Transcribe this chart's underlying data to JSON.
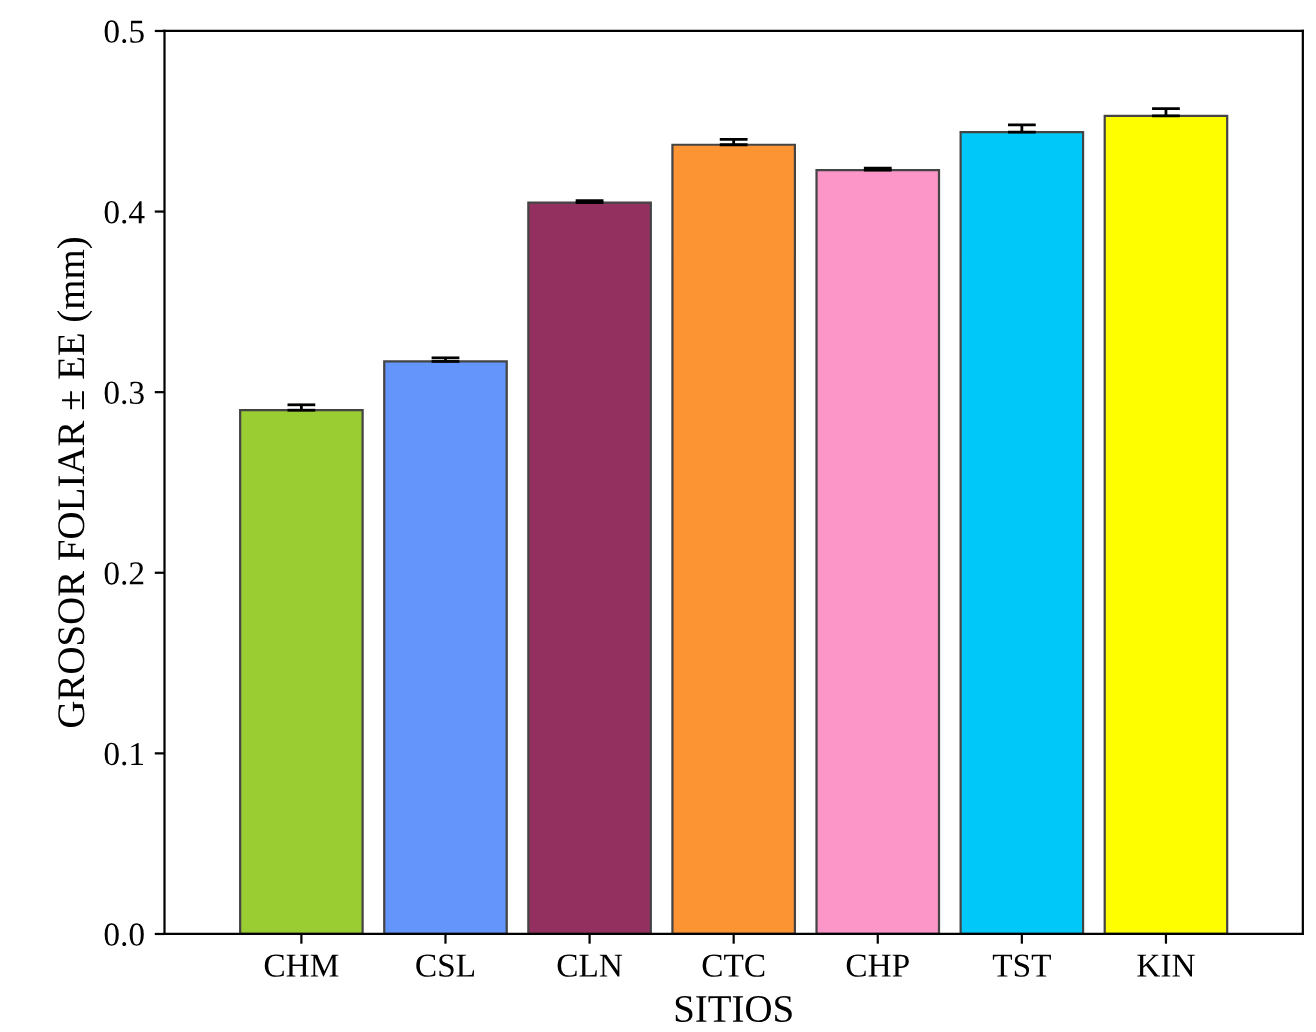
{
  "chart_data": {
    "type": "bar",
    "xlabel": "SITIOS",
    "ylabel": "GROSOR FOLIAR ± EE (mm)",
    "categories": [
      "CHM",
      "CSL",
      "CLN",
      "CTC",
      "CHP",
      "TST",
      "KIN"
    ],
    "values": [
      0.29,
      0.317,
      0.405,
      0.437,
      0.423,
      0.444,
      0.453
    ],
    "errors": [
      0.003,
      0.002,
      0.001,
      0.003,
      0.001,
      0.004,
      0.004
    ],
    "colors": [
      "#9acd32",
      "#6495fa",
      "#943060",
      "#fd9434",
      "#fc96c8",
      "#00c8f8",
      "#fefe00"
    ],
    "ylim": [
      0,
      0.5
    ],
    "yticks": [
      {
        "value": 0,
        "label": "0.0"
      },
      0.1,
      0.2,
      0.3,
      0.4,
      0.5
    ],
    "grid": false
  }
}
